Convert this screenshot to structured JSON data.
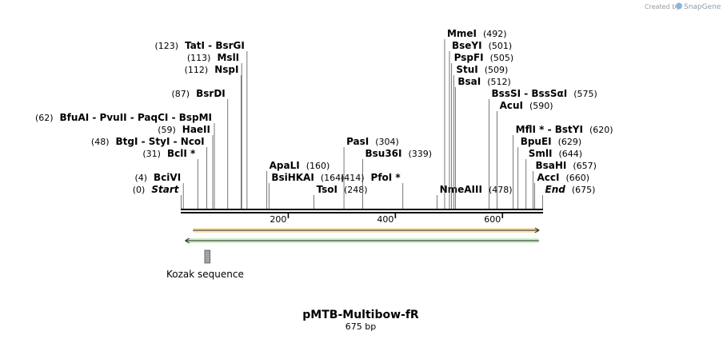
{
  "branding": {
    "created_by": "Created by",
    "app_name": "SnapGene"
  },
  "title": "pMTB-Multibow-fR",
  "length_label": "675 bp",
  "sequence_length": 675,
  "ruler_ticks": [
    "200",
    "400",
    "600"
  ],
  "ruler_tick_values": [
    200,
    400,
    600
  ],
  "sites": [
    {
      "id": "start",
      "row": 0,
      "pos": 0,
      "pos_label": "(0)",
      "name": "Start",
      "italic": true,
      "align": "right"
    },
    {
      "id": "bcivi",
      "row": 1,
      "pos": 4,
      "pos_label": "(4)",
      "name": "BciVI",
      "align": "right"
    },
    {
      "id": "bcli",
      "row": 3,
      "pos": 31,
      "pos_label": "(31)",
      "name": "BclI *",
      "align": "right"
    },
    {
      "id": "btgi",
      "row": 4,
      "pos": 48,
      "pos_label": "(48)",
      "names": [
        "BtgI",
        "StyI",
        "NcoI"
      ],
      "align": "right"
    },
    {
      "id": "haeii",
      "row": 5,
      "pos": 59,
      "pos_label": "(59)",
      "name": "HaeII",
      "align": "right"
    },
    {
      "id": "bfuai",
      "row": 6,
      "pos": 62,
      "pos_label": "(62)",
      "names": [
        "BfuAI",
        "PvuII",
        "PaqCI",
        "BspMI"
      ],
      "align": "right"
    },
    {
      "id": "bsrdi",
      "row": 8,
      "pos": 87,
      "pos_label": "(87)",
      "name": "BsrDI",
      "align": "right"
    },
    {
      "id": "nspi",
      "row": 10,
      "pos": 112,
      "pos_label": "(112)",
      "name": "NspI",
      "align": "right"
    },
    {
      "id": "msli",
      "row": 11,
      "pos": 113,
      "pos_label": "(113)",
      "name": "MslI",
      "align": "right"
    },
    {
      "id": "tati",
      "row": 12,
      "pos": 123,
      "pos_label": "(123)",
      "names": [
        "TatI",
        "BsrGI"
      ],
      "align": "right"
    },
    {
      "id": "apali",
      "row": 2,
      "pos": 160,
      "pos_label": "(160)",
      "name": "ApaLI",
      "align": "left"
    },
    {
      "id": "bsihkai",
      "row": 1,
      "pos": 164,
      "pos_label": "(164)",
      "name": "BsiHKAI",
      "align": "left"
    },
    {
      "id": "tsoi",
      "row": 0,
      "pos": 248,
      "pos_label": "(248)",
      "name": "TsoI",
      "align": "left"
    },
    {
      "id": "pasi",
      "row": 4,
      "pos": 304,
      "pos_label": "(304)",
      "name": "PasI",
      "align": "left"
    },
    {
      "id": "bsu36i",
      "row": 3,
      "pos": 339,
      "pos_label": "(339)",
      "name": "Bsu36I",
      "align": "left"
    },
    {
      "id": "pfoi",
      "row": 1,
      "pos": 414,
      "pos_label": "(414)",
      "name": "PfoI *",
      "align": "right"
    },
    {
      "id": "nmeaiii",
      "row": 0,
      "pos": 478,
      "pos_label": "(478)",
      "name": "NmeAIII",
      "align": "left"
    },
    {
      "id": "bsai",
      "row": 9,
      "pos": 512,
      "pos_label": "(512)",
      "name": "BsaI",
      "align": "left"
    },
    {
      "id": "stui",
      "row": 10,
      "pos": 509,
      "pos_label": "(509)",
      "name": "StuI",
      "align": "left"
    },
    {
      "id": "pspfi",
      "row": 11,
      "pos": 505,
      "pos_label": "(505)",
      "name": "PspFI",
      "align": "left"
    },
    {
      "id": "bseyi",
      "row": 12,
      "pos": 501,
      "pos_label": "(501)",
      "name": "BseYI",
      "align": "left"
    },
    {
      "id": "mmei",
      "row": 13,
      "pos": 492,
      "pos_label": "(492)",
      "name": "MmeI",
      "align": "left"
    },
    {
      "id": "bsssi",
      "row": 8,
      "pos": 575,
      "pos_label": "(575)",
      "names": [
        "BssSI",
        "BssSαI"
      ],
      "align": "left"
    },
    {
      "id": "acui",
      "row": 7,
      "pos": 590,
      "pos_label": "(590)",
      "name": "AcuI",
      "align": "left"
    },
    {
      "id": "mfli",
      "row": 5,
      "pos": 620,
      "pos_label": "(620)",
      "names": [
        "MflI *",
        "BstYI"
      ],
      "align": "left"
    },
    {
      "id": "bpuei",
      "row": 4,
      "pos": 629,
      "pos_label": "(629)",
      "name": "BpuEI",
      "align": "left"
    },
    {
      "id": "smli",
      "row": 3,
      "pos": 644,
      "pos_label": "(644)",
      "name": "SmlI",
      "align": "left"
    },
    {
      "id": "bsahi",
      "row": 2,
      "pos": 657,
      "pos_label": "(657)",
      "name": "BsaHI",
      "align": "left"
    },
    {
      "id": "acci",
      "row": 1,
      "pos": 660,
      "pos_label": "(660)",
      "name": "AccI",
      "align": "left"
    },
    {
      "id": "end",
      "row": 0,
      "pos": 675,
      "pos_label": "(675)",
      "name": "End",
      "italic": true,
      "align": "left"
    }
  ],
  "features": [
    {
      "id": "orange-orf",
      "start": 22,
      "end": 668,
      "direction": "forward",
      "color": "#f5a623",
      "fill": "#f8e3b8"
    },
    {
      "id": "green-orf",
      "start": 8,
      "end": 668,
      "direction": "reverse",
      "color": "#3db52f",
      "fill": "#cfeec8"
    }
  ],
  "kozak": {
    "label": "Kozak sequence",
    "start": 44,
    "end": 54,
    "color": "#9ea3ab"
  }
}
